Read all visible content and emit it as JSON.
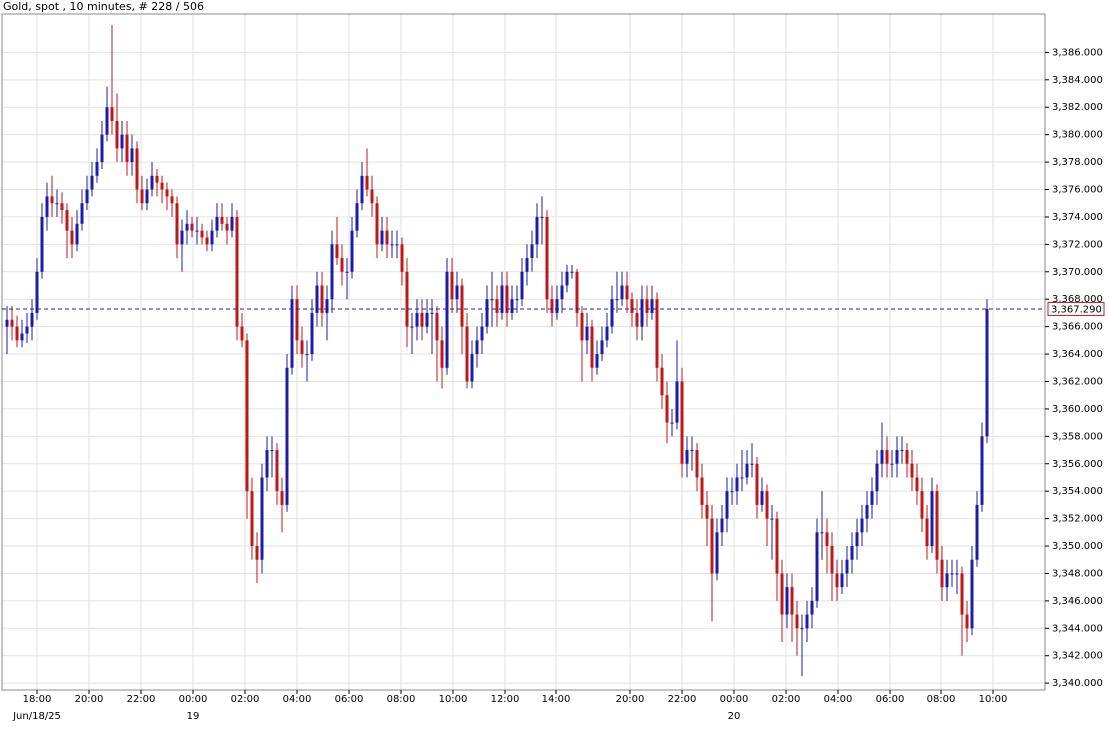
{
  "chart_data": {
    "type": "candlestick",
    "title": "Gold, spot , 10 minutes, # 228 / 506",
    "up_color": "#1c1ca8",
    "down_color": "#c01818",
    "grid": true,
    "grid_color": "#e2e2e2",
    "ylim": [
      3339.5,
      3388.8
    ],
    "yticks": [
      {
        "value": 3340,
        "label": "3,340.000"
      },
      {
        "value": 3342,
        "label": "3,342.000"
      },
      {
        "value": 3344,
        "label": "3,344.000"
      },
      {
        "value": 3346,
        "label": "3,346.000"
      },
      {
        "value": 3348,
        "label": "3,348.000"
      },
      {
        "value": 3350,
        "label": "3,350.000"
      },
      {
        "value": 3352,
        "label": "3,352.000"
      },
      {
        "value": 3354,
        "label": "3,354.000"
      },
      {
        "value": 3356,
        "label": "3,356.000"
      },
      {
        "value": 3358,
        "label": "3,358.000"
      },
      {
        "value": 3360,
        "label": "3,360.000"
      },
      {
        "value": 3362,
        "label": "3,362.000"
      },
      {
        "value": 3364,
        "label": "3,364.000"
      },
      {
        "value": 3366,
        "label": "3,366.000"
      },
      {
        "value": 3368,
        "label": "3,368.000"
      },
      {
        "value": 3370,
        "label": "3,370.000"
      },
      {
        "value": 3372,
        "label": "3,372.000"
      },
      {
        "value": 3374,
        "label": "3,374.000"
      },
      {
        "value": 3376,
        "label": "3,376.000"
      },
      {
        "value": 3378,
        "label": "3,378.000"
      },
      {
        "value": 3380,
        "label": "3,380.000"
      },
      {
        "value": 3382,
        "label": "3,382.000"
      },
      {
        "value": 3384,
        "label": "3,384.000"
      },
      {
        "value": 3386,
        "label": "3,386.000"
      }
    ],
    "xlim": [
      -1,
      207.6
    ],
    "xticks": [
      {
        "value": 6,
        "label": "18:00"
      },
      {
        "value": 16.4,
        "label": "20:00"
      },
      {
        "value": 26.8,
        "label": "22:00"
      },
      {
        "value": 37.2,
        "label": "00:00"
      },
      {
        "value": 47.6,
        "label": "02:00"
      },
      {
        "value": 58,
        "label": "04:00"
      },
      {
        "value": 68.4,
        "label": "06:00"
      },
      {
        "value": 78.8,
        "label": "08:00"
      },
      {
        "value": 89.2,
        "label": "10:00"
      },
      {
        "value": 99.6,
        "label": "12:00"
      },
      {
        "value": 109.8,
        "label": "14:00"
      },
      {
        "value": 124.6,
        "label": "20:00"
      },
      {
        "value": 135,
        "label": "22:00"
      },
      {
        "value": 145.4,
        "label": "00:00"
      },
      {
        "value": 155.8,
        "label": "02:00"
      },
      {
        "value": 166.2,
        "label": "04:00"
      },
      {
        "value": 176.6,
        "label": "06:00"
      },
      {
        "value": 186.8,
        "label": "08:00"
      },
      {
        "value": 197.2,
        "label": "10:00"
      }
    ],
    "date_ticks": [
      {
        "value": 6,
        "label": "Jun/18/25"
      },
      {
        "value": 37.2,
        "label": "19"
      },
      {
        "value": 145.4,
        "label": "20"
      }
    ],
    "last_price": {
      "value": 3367.29,
      "label": "3,367.290",
      "line_color": "#1c1ca8",
      "box_color": "#d01818"
    },
    "candles": [
      [
        3366,
        3367.5,
        3364,
        3366.5
      ],
      [
        3366.5,
        3367.5,
        3365,
        3366
      ],
      [
        3366,
        3366.8,
        3364.5,
        3365
      ],
      [
        3365,
        3366.5,
        3364.5,
        3365.5
      ],
      [
        3365.5,
        3367,
        3364.8,
        3366
      ],
      [
        3366,
        3368,
        3365,
        3367
      ],
      [
        3367,
        3371,
        3366.5,
        3370
      ],
      [
        3370,
        3375,
        3369.5,
        3374
      ],
      [
        3374,
        3376.5,
        3373,
        3375.5
      ],
      [
        3375.5,
        3377,
        3374,
        3375
      ],
      [
        3375,
        3376,
        3374,
        3375
      ],
      [
        3375,
        3375.8,
        3373.5,
        3374.5
      ],
      [
        3374.5,
        3375,
        3371,
        3373
      ],
      [
        3373,
        3374,
        3371,
        3372
      ],
      [
        3372,
        3374.5,
        3371.5,
        3373.5
      ],
      [
        3373.5,
        3376,
        3373,
        3375
      ],
      [
        3375,
        3377,
        3374.5,
        3376
      ],
      [
        3376,
        3378,
        3375.5,
        3377
      ],
      [
        3377,
        3379,
        3376.5,
        3378
      ],
      [
        3378,
        3381,
        3377.5,
        3380
      ],
      [
        3380,
        3383.5,
        3379.5,
        3382
      ],
      [
        3382,
        3388,
        3380,
        3381
      ],
      [
        3381,
        3383,
        3378,
        3379
      ],
      [
        3379,
        3381,
        3378,
        3380
      ],
      [
        3380,
        3381,
        3377,
        3378
      ],
      [
        3378,
        3380,
        3377,
        3379
      ],
      [
        3379,
        3379.5,
        3375,
        3376
      ],
      [
        3376,
        3377,
        3374.5,
        3375
      ],
      [
        3375,
        3376.8,
        3374.5,
        3376
      ],
      [
        3376,
        3378,
        3375.5,
        3377
      ],
      [
        3377,
        3377.5,
        3375.5,
        3376.5
      ],
      [
        3376.5,
        3377,
        3375,
        3376
      ],
      [
        3376,
        3376.5,
        3374.5,
        3375.5
      ],
      [
        3375.5,
        3376,
        3374,
        3375
      ],
      [
        3375,
        3375.5,
        3371,
        3372
      ],
      [
        3372,
        3373.8,
        3370,
        3373
      ],
      [
        3373,
        3374.5,
        3372,
        3373.5
      ],
      [
        3373.5,
        3374,
        3372.5,
        3373
      ],
      [
        3373,
        3374,
        3372,
        3373
      ],
      [
        3373,
        3373.5,
        3372,
        3372.5
      ],
      [
        3372.5,
        3373,
        3371.5,
        3372
      ],
      [
        3372,
        3373.8,
        3371.5,
        3373
      ],
      [
        3373,
        3375,
        3372.5,
        3374
      ],
      [
        3374,
        3375,
        3373,
        3373.5
      ],
      [
        3373.5,
        3374,
        3372,
        3373
      ],
      [
        3373,
        3375,
        3372.5,
        3374
      ],
      [
        3374,
        3374.5,
        3365,
        3366
      ],
      [
        3366,
        3367,
        3364.5,
        3365
      ],
      [
        3365,
        3365.5,
        3352,
        3354
      ],
      [
        3354,
        3355,
        3349,
        3350
      ],
      [
        3350,
        3351,
        3347.3,
        3349
      ],
      [
        3349,
        3356,
        3348,
        3355
      ],
      [
        3355,
        3358,
        3354,
        3357
      ],
      [
        3357,
        3358,
        3355,
        3357
      ],
      [
        3357,
        3357.5,
        3353,
        3354
      ],
      [
        3354,
        3355,
        3351,
        3353
      ],
      [
        3353,
        3364,
        3352.5,
        3363
      ],
      [
        3363,
        3369,
        3362.5,
        3368
      ],
      [
        3368,
        3369,
        3364,
        3365
      ],
      [
        3365,
        3366,
        3363,
        3364
      ],
      [
        3364,
        3365,
        3362,
        3364
      ],
      [
        3364,
        3368,
        3363.5,
        3367
      ],
      [
        3367,
        3370,
        3366,
        3369
      ],
      [
        3369,
        3370,
        3366,
        3367
      ],
      [
        3367,
        3369,
        3365,
        3368
      ],
      [
        3368,
        3373,
        3367,
        3372
      ],
      [
        3372,
        3374,
        3370.5,
        3371
      ],
      [
        3371,
        3372,
        3369,
        3370
      ],
      [
        3370,
        3371,
        3368,
        3370
      ],
      [
        3370,
        3374,
        3369.5,
        3373
      ],
      [
        3373,
        3376,
        3372.5,
        3375
      ],
      [
        3375,
        3378,
        3374.5,
        3377
      ],
      [
        3377,
        3379,
        3375.5,
        3376
      ],
      [
        3376,
        3377,
        3374,
        3375
      ],
      [
        3375,
        3375.5,
        3371,
        3372
      ],
      [
        3372,
        3374,
        3371.5,
        3373
      ],
      [
        3373,
        3374,
        3371,
        3372
      ],
      [
        3372,
        3373,
        3371,
        3372
      ],
      [
        3372,
        3373,
        3371,
        3372
      ],
      [
        3372,
        3372.5,
        3369,
        3370
      ],
      [
        3370,
        3371,
        3364.5,
        3366
      ],
      [
        3366,
        3367,
        3364,
        3366
      ],
      [
        3366,
        3368,
        3365,
        3367
      ],
      [
        3367,
        3368,
        3365,
        3366
      ],
      [
        3366,
        3368,
        3365.5,
        3367
      ],
      [
        3367,
        3368,
        3364,
        3367
      ],
      [
        3367,
        3367.5,
        3362,
        3365
      ],
      [
        3365,
        3366,
        3361.5,
        3363
      ],
      [
        3363,
        3371,
        3362.5,
        3370
      ],
      [
        3370,
        3371,
        3367,
        3368
      ],
      [
        3368,
        3370,
        3367,
        3369
      ],
      [
        3369,
        3369.5,
        3364,
        3366
      ],
      [
        3366,
        3367,
        3361.5,
        3362
      ],
      [
        3362,
        3365,
        3361.5,
        3364
      ],
      [
        3364,
        3366,
        3363,
        3365
      ],
      [
        3365,
        3367,
        3364,
        3366
      ],
      [
        3366,
        3369,
        3365.5,
        3368
      ],
      [
        3368,
        3370,
        3366,
        3368
      ],
      [
        3368,
        3369,
        3366,
        3367
      ],
      [
        3367,
        3370,
        3366.5,
        3369
      ],
      [
        3369,
        3370,
        3366,
        3367
      ],
      [
        3367,
        3369,
        3366.5,
        3368
      ],
      [
        3368,
        3369,
        3367,
        3368
      ],
      [
        3368,
        3371,
        3367.5,
        3370
      ],
      [
        3370,
        3372,
        3369,
        3371
      ],
      [
        3371,
        3373,
        3370,
        3372
      ],
      [
        3372,
        3375,
        3371,
        3374
      ],
      [
        3374,
        3375.5,
        3372,
        3374
      ],
      [
        3374,
        3374.5,
        3367,
        3368
      ],
      [
        3368,
        3369,
        3366,
        3367
      ],
      [
        3367,
        3369,
        3366.5,
        3368
      ],
      [
        3368,
        3370,
        3367,
        3369
      ],
      [
        3369,
        3370.5,
        3368.5,
        3370
      ],
      [
        3370,
        3370.5,
        3369.5,
        3370
      ],
      [
        3370,
        3370.2,
        3366,
        3367
      ],
      [
        3367,
        3367.5,
        3362,
        3365
      ],
      [
        3365,
        3367,
        3364,
        3366
      ],
      [
        3366,
        3366.5,
        3362,
        3363
      ],
      [
        3363,
        3365,
        3362.5,
        3364
      ],
      [
        3364,
        3366,
        3363.5,
        3365
      ],
      [
        3365,
        3367,
        3364.5,
        3366
      ],
      [
        3366,
        3369,
        3365.5,
        3368
      ],
      [
        3368,
        3370,
        3367,
        3368
      ],
      [
        3368,
        3370,
        3367.5,
        3369
      ],
      [
        3369,
        3370,
        3367,
        3368
      ],
      [
        3368,
        3368.5,
        3366,
        3367
      ],
      [
        3367,
        3368,
        3365,
        3366
      ],
      [
        3366,
        3369,
        3365,
        3368
      ],
      [
        3368,
        3369,
        3366,
        3367
      ],
      [
        3367,
        3369,
        3366.5,
        3368
      ],
      [
        3368,
        3368.5,
        3362,
        3363
      ],
      [
        3363,
        3364,
        3360,
        3361
      ],
      [
        3361,
        3362,
        3357.5,
        3359
      ],
      [
        3359,
        3360,
        3358,
        3359
      ],
      [
        3359,
        3365,
        3358.5,
        3362
      ],
      [
        3362,
        3363,
        3355,
        3356
      ],
      [
        3356,
        3358,
        3355,
        3357
      ],
      [
        3357,
        3358,
        3355.5,
        3357
      ],
      [
        3357,
        3357.5,
        3354,
        3355
      ],
      [
        3355,
        3356,
        3352,
        3353
      ],
      [
        3353,
        3354,
        3350,
        3352
      ],
      [
        3352,
        3353,
        3344.5,
        3348
      ],
      [
        3348,
        3352,
        3347.5,
        3351
      ],
      [
        3351,
        3353,
        3350,
        3352
      ],
      [
        3352,
        3355,
        3351,
        3354
      ],
      [
        3354,
        3355,
        3353,
        3354
      ],
      [
        3354,
        3356,
        3353,
        3355
      ],
      [
        3355,
        3357,
        3354,
        3355
      ],
      [
        3355,
        3357,
        3354.5,
        3356
      ],
      [
        3356,
        3357.5,
        3355,
        3356
      ],
      [
        3356,
        3356.5,
        3352,
        3353
      ],
      [
        3353,
        3355,
        3352.5,
        3354
      ],
      [
        3354,
        3354.5,
        3350,
        3352
      ],
      [
        3352,
        3353,
        3349,
        3352
      ],
      [
        3352,
        3352.5,
        3346,
        3348
      ],
      [
        3348,
        3349,
        3343,
        3345
      ],
      [
        3345,
        3348,
        3344,
        3347
      ],
      [
        3347,
        3348,
        3343,
        3345
      ],
      [
        3345,
        3346,
        3342,
        3344
      ],
      [
        3344,
        3345,
        3340.5,
        3344
      ],
      [
        3344,
        3346,
        3343,
        3345
      ],
      [
        3345,
        3347,
        3344,
        3346
      ],
      [
        3346,
        3352,
        3345.5,
        3351
      ],
      [
        3351,
        3354,
        3349,
        3351
      ],
      [
        3351,
        3352,
        3348,
        3350
      ],
      [
        3350,
        3351,
        3346,
        3348
      ],
      [
        3348,
        3349,
        3346,
        3347
      ],
      [
        3347,
        3349,
        3346.5,
        3348
      ],
      [
        3348,
        3350,
        3347,
        3349
      ],
      [
        3349,
        3351,
        3348,
        3350
      ],
      [
        3350,
        3352,
        3349,
        3351
      ],
      [
        3351,
        3353,
        3350,
        3352
      ],
      [
        3352,
        3354,
        3351,
        3353
      ],
      [
        3353,
        3355,
        3352,
        3354
      ],
      [
        3354,
        3357,
        3353,
        3356
      ],
      [
        3356,
        3359,
        3355,
        3357
      ],
      [
        3357,
        3358,
        3355,
        3356
      ],
      [
        3356,
        3357,
        3355,
        3356
      ],
      [
        3356,
        3358,
        3355,
        3357
      ],
      [
        3357,
        3358,
        3356,
        3357
      ],
      [
        3357,
        3357.5,
        3355,
        3356
      ],
      [
        3356,
        3357,
        3354,
        3355
      ],
      [
        3355,
        3356,
        3353,
        3354
      ],
      [
        3354,
        3355,
        3351,
        3352
      ],
      [
        3352,
        3353,
        3349,
        3350
      ],
      [
        3350,
        3355,
        3349.5,
        3354
      ],
      [
        3354,
        3354.5,
        3348,
        3349
      ],
      [
        3349,
        3350,
        3346,
        3347
      ],
      [
        3347,
        3349,
        3346,
        3348
      ],
      [
        3348,
        3349,
        3347,
        3348
      ],
      [
        3348,
        3349,
        3346.5,
        3348
      ],
      [
        3348,
        3348.5,
        3342,
        3345
      ],
      [
        3345,
        3346,
        3343,
        3344
      ],
      [
        3344,
        3350,
        3343.5,
        3349
      ],
      [
        3349,
        3354,
        3348.5,
        3353
      ],
      [
        3353,
        3359,
        3352.5,
        3358
      ],
      [
        3358,
        3368,
        3357.5,
        3367.29
      ]
    ]
  }
}
